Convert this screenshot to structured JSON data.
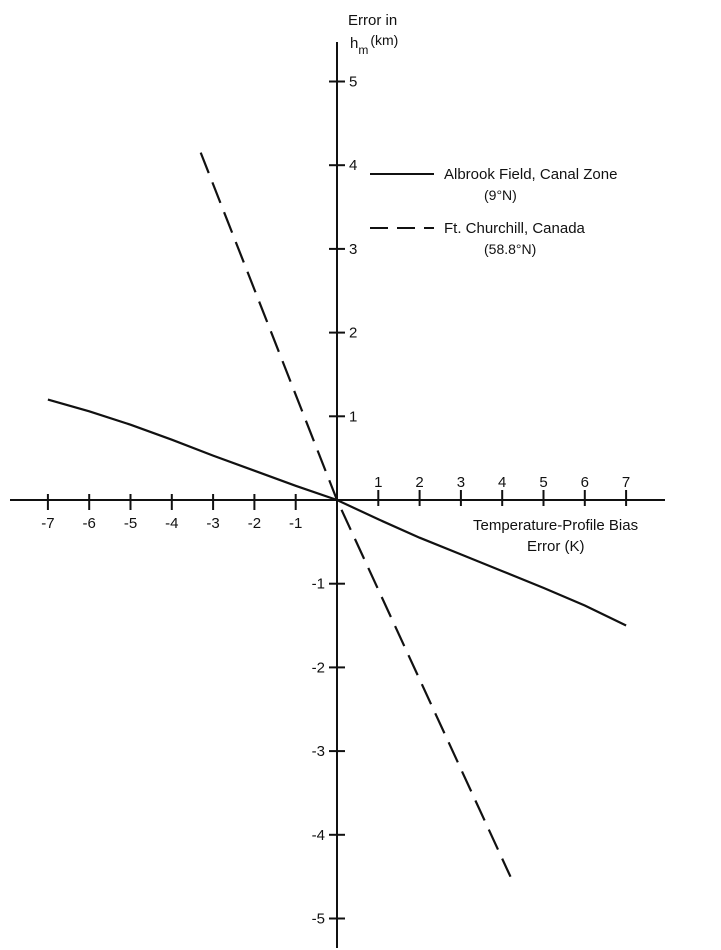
{
  "chart_data": {
    "type": "line",
    "y_axis_title": {
      "line1": "Error in",
      "line2_main": "h",
      "line2_sub": "m",
      "line2_unit": "(km)"
    },
    "x_axis_title": {
      "line1": "Temperature-Profile Bias",
      "line2": "Error (K)"
    },
    "x_ticks": [
      -7,
      -6,
      -5,
      -4,
      -3,
      -2,
      -1,
      1,
      2,
      3,
      4,
      5,
      6,
      7
    ],
    "y_ticks": [
      5,
      4,
      3,
      2,
      1,
      -1,
      -2,
      -3,
      -4,
      -5
    ],
    "xlim": [
      -8,
      8
    ],
    "ylim": [
      -6,
      6
    ],
    "series": [
      {
        "name": "Albrook Field, Canal Zone",
        "name_detail": "(9°N)",
        "style": "solid",
        "points": [
          [
            -7,
            1.2
          ],
          [
            -6,
            1.06
          ],
          [
            -5,
            0.9
          ],
          [
            -4,
            0.72
          ],
          [
            -3,
            0.53
          ],
          [
            -2,
            0.35
          ],
          [
            -1,
            0.17
          ],
          [
            0,
            0
          ],
          [
            1,
            -0.23
          ],
          [
            2,
            -0.45
          ],
          [
            3,
            -0.65
          ],
          [
            4,
            -0.85
          ],
          [
            5,
            -1.05
          ],
          [
            6,
            -1.26
          ],
          [
            7,
            -1.5
          ]
        ]
      },
      {
        "name": "Ft. Churchill, Canada",
        "name_detail": "(58.8°N)",
        "style": "dashed",
        "points": [
          [
            -3.3,
            4.15
          ],
          [
            0,
            0
          ],
          [
            4.2,
            -4.5
          ]
        ]
      }
    ]
  }
}
